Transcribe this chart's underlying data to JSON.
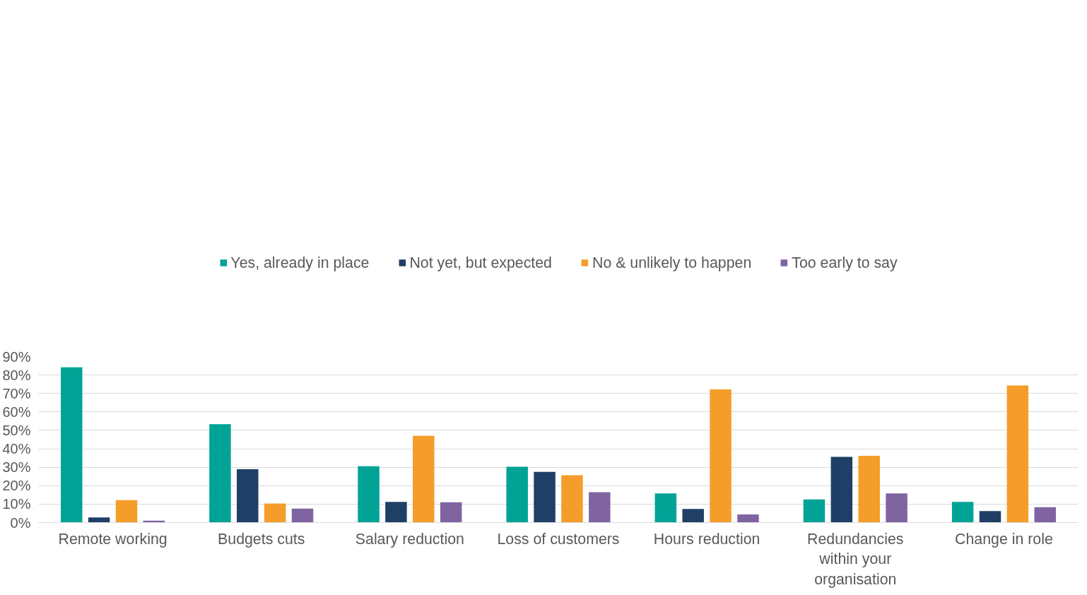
{
  "chart_data": {
    "type": "bar",
    "categories": [
      "Remote working",
      "Budgets cuts",
      "Salary reduction",
      "Loss of customers",
      "Hours reduction",
      "Redundancies within your organisation",
      "Change in role"
    ],
    "series": [
      {
        "name": "Yes, already in place",
        "color": "#00a396",
        "values": [
          84.2,
          53.3,
          30.5,
          30.3,
          15.8,
          12.5,
          11.2
        ]
      },
      {
        "name": "Not yet, but expected",
        "color": "#1f3f66",
        "values": [
          2.8,
          28.9,
          11.2,
          27.5,
          7.4,
          35.6,
          6.2
        ]
      },
      {
        "name": "No & unlikely to happen",
        "color": "#f59d2a",
        "values": [
          12.2,
          10.3,
          47.0,
          25.7,
          72.2,
          36.2,
          74.3
        ]
      },
      {
        "name": "Too early to say",
        "color": "#8064a2",
        "values": [
          1.1,
          7.6,
          11.0,
          16.5,
          4.4,
          15.8,
          8.3
        ]
      }
    ],
    "ylim": [
      0,
      90
    ],
    "yticks": [
      {
        "value": 0,
        "label": "0%"
      },
      {
        "value": 10,
        "label": "10%"
      },
      {
        "value": 20,
        "label": "20%"
      },
      {
        "value": 30,
        "label": "30%"
      },
      {
        "value": 40,
        "label": "40%"
      },
      {
        "value": 50,
        "label": "50%"
      },
      {
        "value": 60,
        "label": "60%"
      },
      {
        "value": 70,
        "label": "70%"
      },
      {
        "value": 80,
        "label": "80%"
      },
      {
        "value": 90,
        "label": "90%"
      }
    ],
    "grid": "y",
    "legend": "top"
  }
}
